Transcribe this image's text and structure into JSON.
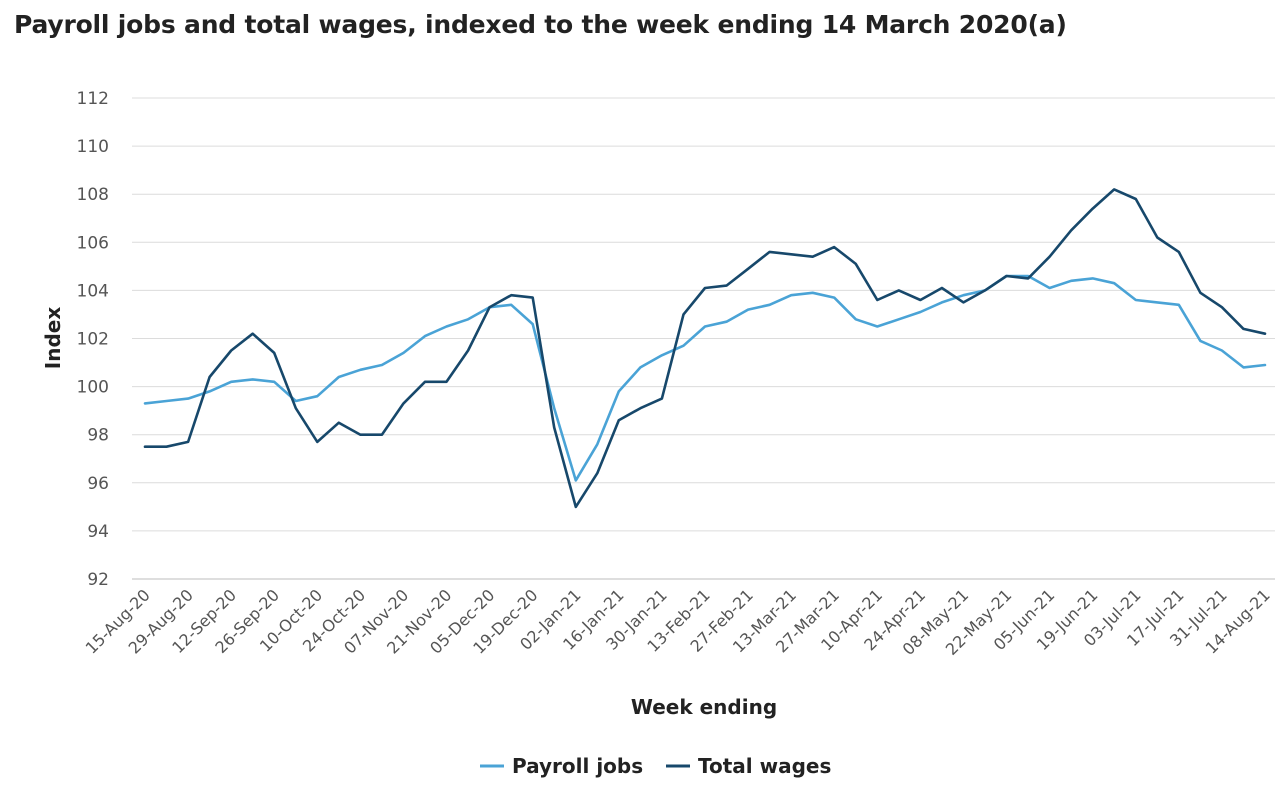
{
  "colors": {
    "payroll": "#4aa3d6",
    "wages": "#17486b",
    "grid": "#dcdcdc",
    "axis": "#bcbcbc"
  },
  "chart_data": {
    "type": "line",
    "title": "Payroll jobs and total wages, indexed to the week ending 14 March 2020(a)",
    "xlabel": "Week ending",
    "ylabel": "Index",
    "ylim": [
      92,
      112
    ],
    "yticks": [
      92,
      94,
      96,
      98,
      100,
      102,
      104,
      106,
      108,
      110,
      112
    ],
    "grid": true,
    "legend_position": "bottom-center",
    "x_tick_labels": [
      "15-Aug-20",
      "29-Aug-20",
      "12-Sep-20",
      "26-Sep-20",
      "10-Oct-20",
      "24-Oct-20",
      "07-Nov-20",
      "21-Nov-20",
      "05-Dec-20",
      "19-Dec-20",
      "02-Jan-21",
      "16-Jan-21",
      "30-Jan-21",
      "13-Feb-21",
      "27-Feb-21",
      "13-Mar-21",
      "27-Mar-21",
      "10-Apr-21",
      "24-Apr-21",
      "08-May-21",
      "22-May-21",
      "05-Jun-21",
      "19-Jun-21",
      "03-Jul-21",
      "17-Jul-21",
      "31-Jul-21",
      "14-Aug-21"
    ],
    "series": [
      {
        "name": "Payroll jobs",
        "color_key": "payroll",
        "values": [
          99.3,
          99.4,
          99.5,
          99.8,
          100.2,
          100.3,
          100.2,
          99.4,
          99.6,
          100.4,
          100.7,
          100.9,
          101.4,
          102.1,
          102.5,
          102.8,
          103.3,
          103.4,
          102.6,
          99.1,
          96.1,
          97.6,
          99.8,
          100.8,
          101.3,
          101.7,
          102.5,
          102.7,
          103.2,
          103.4,
          103.8,
          103.9,
          103.7,
          102.8,
          102.5,
          102.8,
          103.1,
          103.5,
          103.8,
          104.0,
          104.6,
          104.6,
          104.1,
          104.4,
          104.5,
          104.3,
          103.6,
          103.5,
          103.4,
          101.9,
          101.5,
          100.8,
          100.9
        ]
      },
      {
        "name": "Total wages",
        "color_key": "wages",
        "values": [
          97.5,
          97.5,
          97.7,
          100.4,
          101.5,
          102.2,
          101.4,
          99.1,
          97.7,
          98.5,
          98.0,
          98.0,
          99.3,
          100.2,
          100.2,
          101.5,
          103.3,
          103.8,
          103.7,
          98.3,
          95.0,
          96.4,
          98.6,
          99.1,
          99.5,
          103.0,
          104.1,
          104.2,
          104.9,
          105.6,
          105.5,
          105.4,
          105.8,
          105.1,
          103.6,
          104.0,
          103.6,
          104.1,
          103.5,
          104.0,
          104.6,
          104.5,
          105.4,
          106.5,
          107.4,
          108.2,
          107.8,
          106.2,
          105.6,
          103.9,
          103.3,
          102.4,
          102.2
        ]
      }
    ]
  }
}
